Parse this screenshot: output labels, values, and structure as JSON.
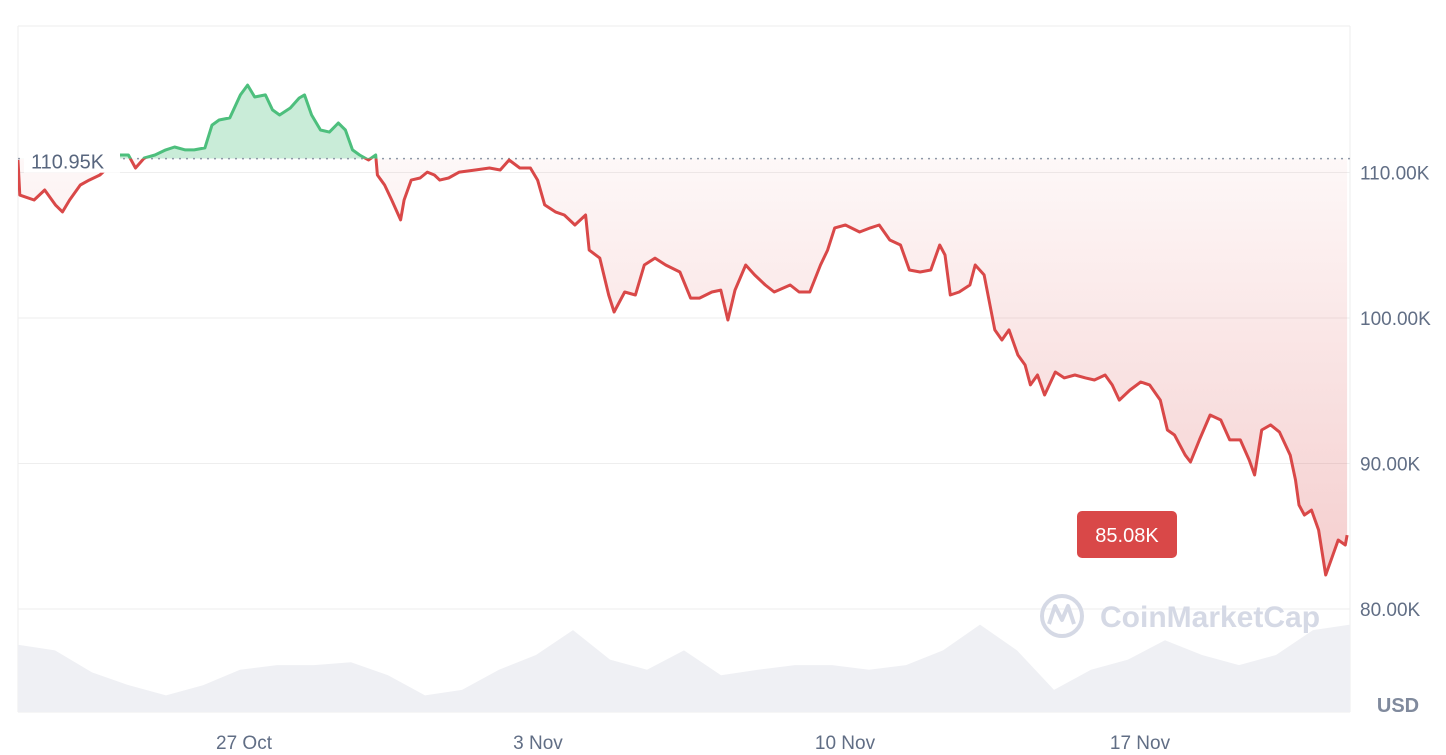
{
  "chart_data": {
    "type": "area",
    "ylabel": "USD",
    "ylim": [
      75,
      120
    ],
    "y_ticks": [
      "80.00K",
      "90.00K",
      "100.00K",
      "110.00K"
    ],
    "y_tick_values": [
      80,
      90,
      100,
      110
    ],
    "x_ticks": [
      "27 Oct",
      "3 Nov",
      "10 Nov",
      "17 Nov"
    ],
    "baseline": {
      "value": 110.95,
      "label": "110.95K"
    },
    "current": {
      "value": 85.08,
      "label": "85.08K"
    },
    "grid": true,
    "colors": {
      "up": "#4dbf7d",
      "down": "#d94848",
      "badge": "#d94848",
      "volume": "#eff0f4",
      "grid": "#eeeeee"
    },
    "watermark": "CoinMarketCap",
    "series": [
      {
        "unit": "thousand USD",
        "points": [
          [
            "Oct 21 17:00",
            110.86
          ],
          [
            "Oct 21 18:00",
            108.45
          ],
          [
            "Oct 21 21:00",
            108.32
          ],
          [
            "Oct 22 02:00",
            108.11
          ],
          [
            "Oct 22 08:00",
            108.8
          ],
          [
            "Oct 22 14:00",
            107.77
          ],
          [
            "Oct 22 18:00",
            107.29
          ],
          [
            "Oct 22 22:00",
            108.11
          ],
          [
            "Oct 23 04:00",
            109.14
          ],
          [
            "Oct 23 09:00",
            109.48
          ],
          [
            "Oct 23 15:00",
            109.83
          ],
          [
            "Oct 23 21:00",
            110.52
          ],
          [
            "Oct 24 02:00",
            111.2
          ],
          [
            "Oct 24 07:00",
            111.2
          ],
          [
            "Oct 24 11:00",
            110.31
          ],
          [
            "Oct 24 16:00",
            111.0
          ],
          [
            "Oct 24 22:00",
            111.2
          ],
          [
            "Oct 25 04:00",
            111.55
          ],
          [
            "Oct 25 09:00",
            111.75
          ],
          [
            "Oct 25 15:00",
            111.55
          ],
          [
            "Oct 25 20:00",
            111.55
          ],
          [
            "Oct 26 02:00",
            111.69
          ],
          [
            "Oct 26 06:00",
            113.26
          ],
          [
            "Oct 26 10:00",
            113.61
          ],
          [
            "Oct 26 16:00",
            113.75
          ],
          [
            "Oct 26 22:00",
            115.33
          ],
          [
            "Oct 27 02:00",
            116.01
          ],
          [
            "Oct 27 06:00",
            115.19
          ],
          [
            "Oct 27 12:00",
            115.33
          ],
          [
            "Oct 27 16:00",
            114.3
          ],
          [
            "Oct 27 20:00",
            113.95
          ],
          [
            "Oct 28 02:00",
            114.43
          ],
          [
            "Oct 28 07:00",
            115.12
          ],
          [
            "Oct 28 10:00",
            115.33
          ],
          [
            "Oct 28 14:00",
            113.95
          ],
          [
            "Oct 28 19:00",
            112.92
          ],
          [
            "Oct 29 00:00",
            112.78
          ],
          [
            "Oct 29 05:00",
            113.4
          ],
          [
            "Oct 29 09:00",
            112.92
          ],
          [
            "Oct 29 13:00",
            111.55
          ],
          [
            "Oct 29 17:00",
            111.2
          ],
          [
            "Oct 29 22:00",
            110.86
          ],
          [
            "Oct 30 02:00",
            111.2
          ],
          [
            "Oct 30 03:00",
            109.83
          ],
          [
            "Oct 30 07:00",
            109.14
          ],
          [
            "Oct 30 11:00",
            108.11
          ],
          [
            "Oct 30 16:00",
            106.74
          ],
          [
            "Oct 30 18:00",
            108.11
          ],
          [
            "Oct 30 22:00",
            109.48
          ],
          [
            "Oct 31 03:00",
            109.62
          ],
          [
            "Oct 31 07:00",
            110.03
          ],
          [
            "Oct 31 11:00",
            109.83
          ],
          [
            "Oct 31 14:00",
            109.48
          ],
          [
            "Oct 31 19:00",
            109.62
          ],
          [
            "Nov 1 01:00",
            110.03
          ],
          [
            "Nov 1 10:00",
            110.17
          ],
          [
            "Nov 1 18:00",
            110.31
          ],
          [
            "Nov 2 00:00",
            110.17
          ],
          [
            "Nov 2 05:00",
            110.86
          ],
          [
            "Nov 2 11:00",
            110.31
          ],
          [
            "Nov 2 17:00",
            110.31
          ],
          [
            "Nov 2 21:00",
            109.48
          ],
          [
            "Nov 3 01:00",
            107.77
          ],
          [
            "Nov 3 07:00",
            107.29
          ],
          [
            "Nov 3 12:00",
            107.08
          ],
          [
            "Nov 3 18:00",
            106.39
          ],
          [
            "Nov 4 00:00",
            107.08
          ],
          [
            "Nov 4 02:00",
            104.67
          ],
          [
            "Nov 4 08:00",
            104.12
          ],
          [
            "Nov 4 13:00",
            101.58
          ],
          [
            "Nov 4 16:00",
            100.41
          ],
          [
            "Nov 4 22:00",
            101.79
          ],
          [
            "Nov 5 04:00",
            101.58
          ],
          [
            "Nov 5 09:00",
            103.64
          ],
          [
            "Nov 5 15:00",
            104.12
          ],
          [
            "Nov 5 21:00",
            103.64
          ],
          [
            "Nov 6 05:00",
            103.16
          ],
          [
            "Nov 6 11:00",
            101.37
          ],
          [
            "Nov 6 16:00",
            101.37
          ],
          [
            "Nov 6 23:00",
            101.79
          ],
          [
            "Nov 7 04:00",
            101.92
          ],
          [
            "Nov 7 08:00",
            99.86
          ],
          [
            "Nov 7 12:00",
            101.92
          ],
          [
            "Nov 7 18:00",
            103.64
          ],
          [
            "Nov 7 23:00",
            102.96
          ],
          [
            "Nov 8 05:00",
            102.27
          ],
          [
            "Nov 8 10:00",
            101.79
          ],
          [
            "Nov 8 19:00",
            102.27
          ],
          [
            "Nov 9 00:00",
            101.79
          ],
          [
            "Nov 9 06:00",
            101.79
          ],
          [
            "Nov 9 12:00",
            103.64
          ],
          [
            "Nov 9 16:00",
            104.67
          ],
          [
            "Nov 9 20:00",
            106.19
          ],
          [
            "Nov 10 02:00",
            106.39
          ],
          [
            "Nov 10 10:00",
            105.91
          ],
          [
            "Nov 10 16:00",
            106.19
          ],
          [
            "Nov 10 21:00",
            106.39
          ],
          [
            "Nov 11 03:00",
            105.36
          ],
          [
            "Nov 11 09:00",
            105.02
          ],
          [
            "Nov 11 14:00",
            103.3
          ],
          [
            "Nov 11 20:00",
            103.16
          ],
          [
            "Nov 12 02:00",
            103.3
          ],
          [
            "Nov 12 07:00",
            105.02
          ],
          [
            "Nov 12 10:00",
            104.33
          ],
          [
            "Nov 12 13:00",
            101.58
          ],
          [
            "Nov 12 18:00",
            101.79
          ],
          [
            "Nov 13 00:00",
            102.27
          ],
          [
            "Nov 13 03:00",
            103.64
          ],
          [
            "Nov 13 08:00",
            102.96
          ],
          [
            "Nov 13 14:00",
            99.18
          ],
          [
            "Nov 13 18:00",
            98.49
          ],
          [
            "Nov 13 22:00",
            99.18
          ],
          [
            "Nov 14 03:00",
            97.46
          ],
          [
            "Nov 14 07:00",
            96.77
          ],
          [
            "Nov 14 10:00",
            95.4
          ],
          [
            "Nov 14 14:00",
            96.08
          ],
          [
            "Nov 14 18:00",
            94.71
          ],
          [
            "Nov 15 00:00",
            96.29
          ],
          [
            "Nov 15 05:00",
            95.88
          ],
          [
            "Nov 15 11:00",
            96.08
          ],
          [
            "Nov 15 17:00",
            95.88
          ],
          [
            "Nov 15 22:00",
            95.74
          ],
          [
            "Nov 16 04:00",
            96.08
          ],
          [
            "Nov 16 08:00",
            95.4
          ],
          [
            "Nov 16 12:00",
            94.36
          ],
          [
            "Nov 16 18:00",
            95.05
          ],
          [
            "Nov 17 00:00",
            95.6
          ],
          [
            "Nov 17 05:00",
            95.4
          ],
          [
            "Nov 17 11:00",
            94.36
          ],
          [
            "Nov 17 15:00",
            92.3
          ],
          [
            "Nov 17 19:00",
            91.96
          ],
          [
            "Nov 18 01:00",
            90.58
          ],
          [
            "Nov 18 04:00",
            90.1
          ],
          [
            "Nov 18 09:00",
            91.62
          ],
          [
            "Nov 18 15:00",
            93.33
          ],
          [
            "Nov 18 21:00",
            92.99
          ],
          [
            "Nov 19 02:00",
            91.62
          ],
          [
            "Nov 19 08:00",
            91.62
          ],
          [
            "Nov 19 13:00",
            90.24
          ],
          [
            "Nov 19 16:00",
            89.21
          ],
          [
            "Nov 19 20:00",
            92.3
          ],
          [
            "Nov 20 01:00",
            92.65
          ],
          [
            "Nov 20 06:00",
            92.16
          ],
          [
            "Nov 20 12:00",
            90.58
          ],
          [
            "Nov 20 15:00",
            88.87
          ],
          [
            "Nov 20 17:00",
            87.15
          ],
          [
            "Nov 20 20:00",
            86.46
          ],
          [
            "Nov 21 00:00",
            86.8
          ],
          [
            "Nov 21 04:00",
            85.43
          ],
          [
            "Nov 21 08:00",
            82.34
          ],
          [
            "Nov 21 11:00",
            83.37
          ],
          [
            "Nov 21 15:00",
            84.74
          ],
          [
            "Nov 21 19:00",
            84.4
          ],
          [
            "Nov 21 20:00",
            85.08
          ]
        ]
      }
    ],
    "volume_relative": [
      0.73,
      0.67,
      0.43,
      0.29,
      0.18,
      0.29,
      0.46,
      0.51,
      0.51,
      0.54,
      0.4,
      0.18,
      0.24,
      0.46,
      0.62,
      0.89,
      0.57,
      0.46,
      0.67,
      0.4,
      0.46,
      0.51,
      0.51,
      0.46,
      0.51,
      0.67,
      0.95,
      0.67,
      0.24,
      0.46,
      0.57,
      0.78,
      0.62,
      0.51,
      0.62,
      0.89,
      0.95
    ]
  }
}
